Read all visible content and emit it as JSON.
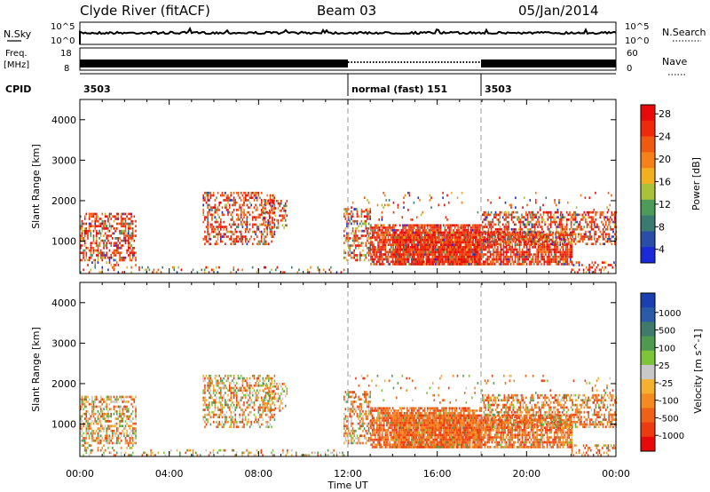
{
  "header": {
    "station": "Clyde River (fitACF)",
    "beam": "Beam 03",
    "date": "05/Jan/2014"
  },
  "strip_labels": {
    "nsky": "N.Sky",
    "nsky_top": "10^5",
    "nsky_bottom": "10^0",
    "nsearch": "N.Search",
    "nsearch_top": "10^5",
    "nsearch_bottom": "10^0",
    "freq_line1": "Freq.",
    "freq_line2": "[MHz]",
    "freq_top": "18",
    "freq_bottom": "8",
    "nave": "Nave",
    "nave_top": "60",
    "nave_bottom": "0",
    "cpid": "CPID",
    "cpid_segments": [
      {
        "label": "3503",
        "start_hour": 0
      },
      {
        "label": "normal (fast) 151",
        "start_hour": 12
      },
      {
        "label": "3503",
        "start_hour": 18
      }
    ]
  },
  "x_axis": {
    "title": "Time UT",
    "ticks": [
      "00:00",
      "04:00",
      "08:00",
      "12:00",
      "16:00",
      "20:00",
      "00:00"
    ]
  },
  "chart_data": [
    {
      "type": "heatmap",
      "name": "power",
      "ylabel": "Slant Range [km]",
      "xlim": [
        0,
        24
      ],
      "ylim": [
        200,
        4500
      ],
      "yticks": [
        "1000",
        "2000",
        "3000",
        "4000"
      ],
      "colorbar_label": "Power [dB]",
      "colorbar_ticks": [
        "4",
        "8",
        "12",
        "16",
        "20",
        "24",
        "28"
      ],
      "colorbar_colors": [
        "#1b2ad8",
        "#2a4ea8",
        "#3a7a70",
        "#4e9a5a",
        "#a9c23a",
        "#f0b020",
        "#f58218",
        "#f05a10",
        "#ee2a0a",
        "#e80a0a"
      ]
    },
    {
      "type": "heatmap",
      "name": "velocity",
      "ylabel": "Slant Range [km]",
      "xlim": [
        0,
        24
      ],
      "ylim": [
        200,
        4500
      ],
      "yticks": [
        "1000",
        "2000",
        "3000",
        "4000"
      ],
      "colorbar_label": "Velocity [m s^-1]",
      "colorbar_ticks": [
        "1000",
        "500",
        "100",
        "25",
        "-25",
        "-100",
        "-500",
        "-1000"
      ],
      "colorbar_colors": [
        "#1a3fb0",
        "#2a5aa8",
        "#3f7a6a",
        "#4f9a50",
        "#7ec43a",
        "#c8c8c8",
        "#f5b030",
        "#f58a20",
        "#f06018",
        "#ee3a10",
        "#e80a0a"
      ]
    }
  ]
}
